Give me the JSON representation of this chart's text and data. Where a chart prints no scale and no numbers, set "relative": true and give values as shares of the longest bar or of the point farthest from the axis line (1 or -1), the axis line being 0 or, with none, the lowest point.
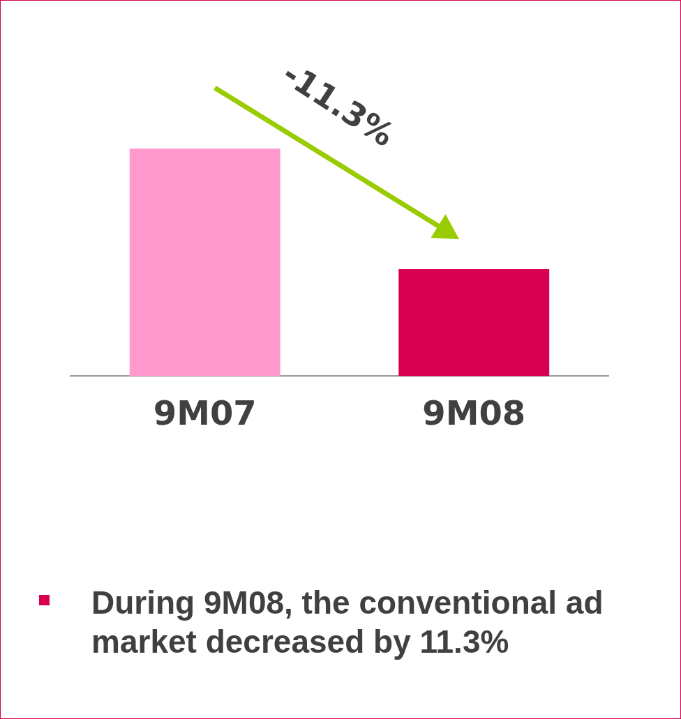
{
  "chart_data": {
    "type": "bar",
    "relative": true,
    "categories": [
      "9M07",
      "9M08"
    ],
    "values": [
      1,
      0.47
    ],
    "colors": [
      "#ff99cc",
      "#d6004f"
    ],
    "annotations": [
      "-11.3%",
      "During 9M08, the conventional ad market decreased by 11.3%"
    ],
    "grid": false,
    "legend": false
  }
}
